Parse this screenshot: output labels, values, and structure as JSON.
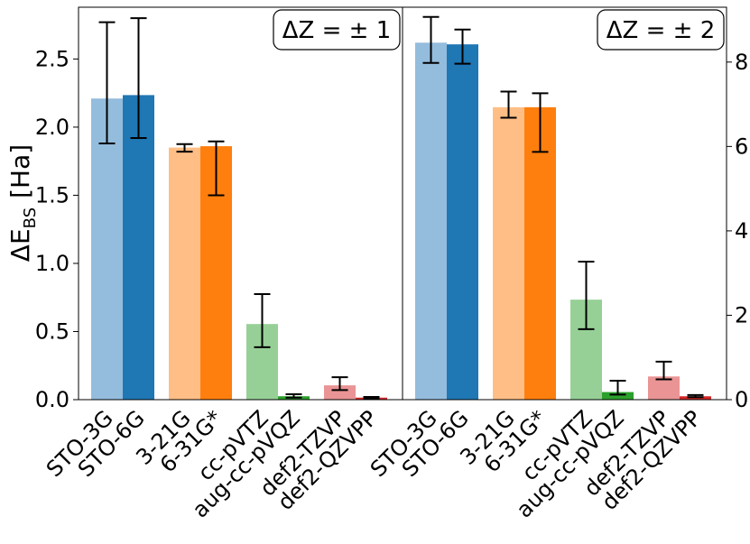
{
  "chart_data": {
    "type": "bar",
    "ylabel": "ΔE_BS [Ha]",
    "ylabel_main": "ΔE",
    "ylabel_sub": "BS",
    "ylabel_unit": "[Ha]",
    "categories": [
      "STO-3G",
      "STO-6G",
      "3-21G",
      "6-31G*",
      "cc-pVTZ",
      "aug-cc-pVQZ",
      "def2-TZVP",
      "def2-QZVPP"
    ],
    "colors": [
      "#94bcdd",
      "#1f77b4",
      "#ffbe86",
      "#ff7f0e",
      "#96d096",
      "#2ca02c",
      "#ea9495",
      "#d62728"
    ],
    "panels": [
      {
        "label": "ΔZ = ± 1",
        "y_axis_side": "left",
        "ylim": [
          0,
          2.88
        ],
        "yticks": [
          0.0,
          0.5,
          1.0,
          1.5,
          2.0,
          2.5
        ],
        "ytick_labels": [
          "0.0",
          "0.5",
          "1.0",
          "1.5",
          "2.0",
          "2.5"
        ],
        "values": [
          2.21,
          2.235,
          1.85,
          1.86,
          0.555,
          0.025,
          0.105,
          0.015
        ],
        "err_low": [
          1.88,
          1.92,
          1.82,
          1.5,
          0.385,
          0.015,
          0.07,
          0.01
        ],
        "err_high": [
          2.77,
          2.8,
          1.875,
          1.895,
          0.775,
          0.04,
          0.165,
          0.02
        ]
      },
      {
        "label": "ΔZ = ± 2",
        "y_axis_side": "right",
        "ylim": [
          0,
          9.3
        ],
        "yticks": [
          0,
          2,
          4,
          6,
          8
        ],
        "ytick_labels": [
          "0",
          "2",
          "4",
          "6",
          "8"
        ],
        "values": [
          8.46,
          8.42,
          6.93,
          6.93,
          2.37,
          0.18,
          0.55,
          0.08
        ],
        "err_low": [
          7.98,
          7.96,
          6.68,
          5.87,
          1.67,
          0.12,
          0.48,
          0.06
        ],
        "err_high": [
          9.07,
          8.77,
          7.3,
          7.26,
          3.27,
          0.45,
          0.9,
          0.11
        ]
      }
    ]
  }
}
